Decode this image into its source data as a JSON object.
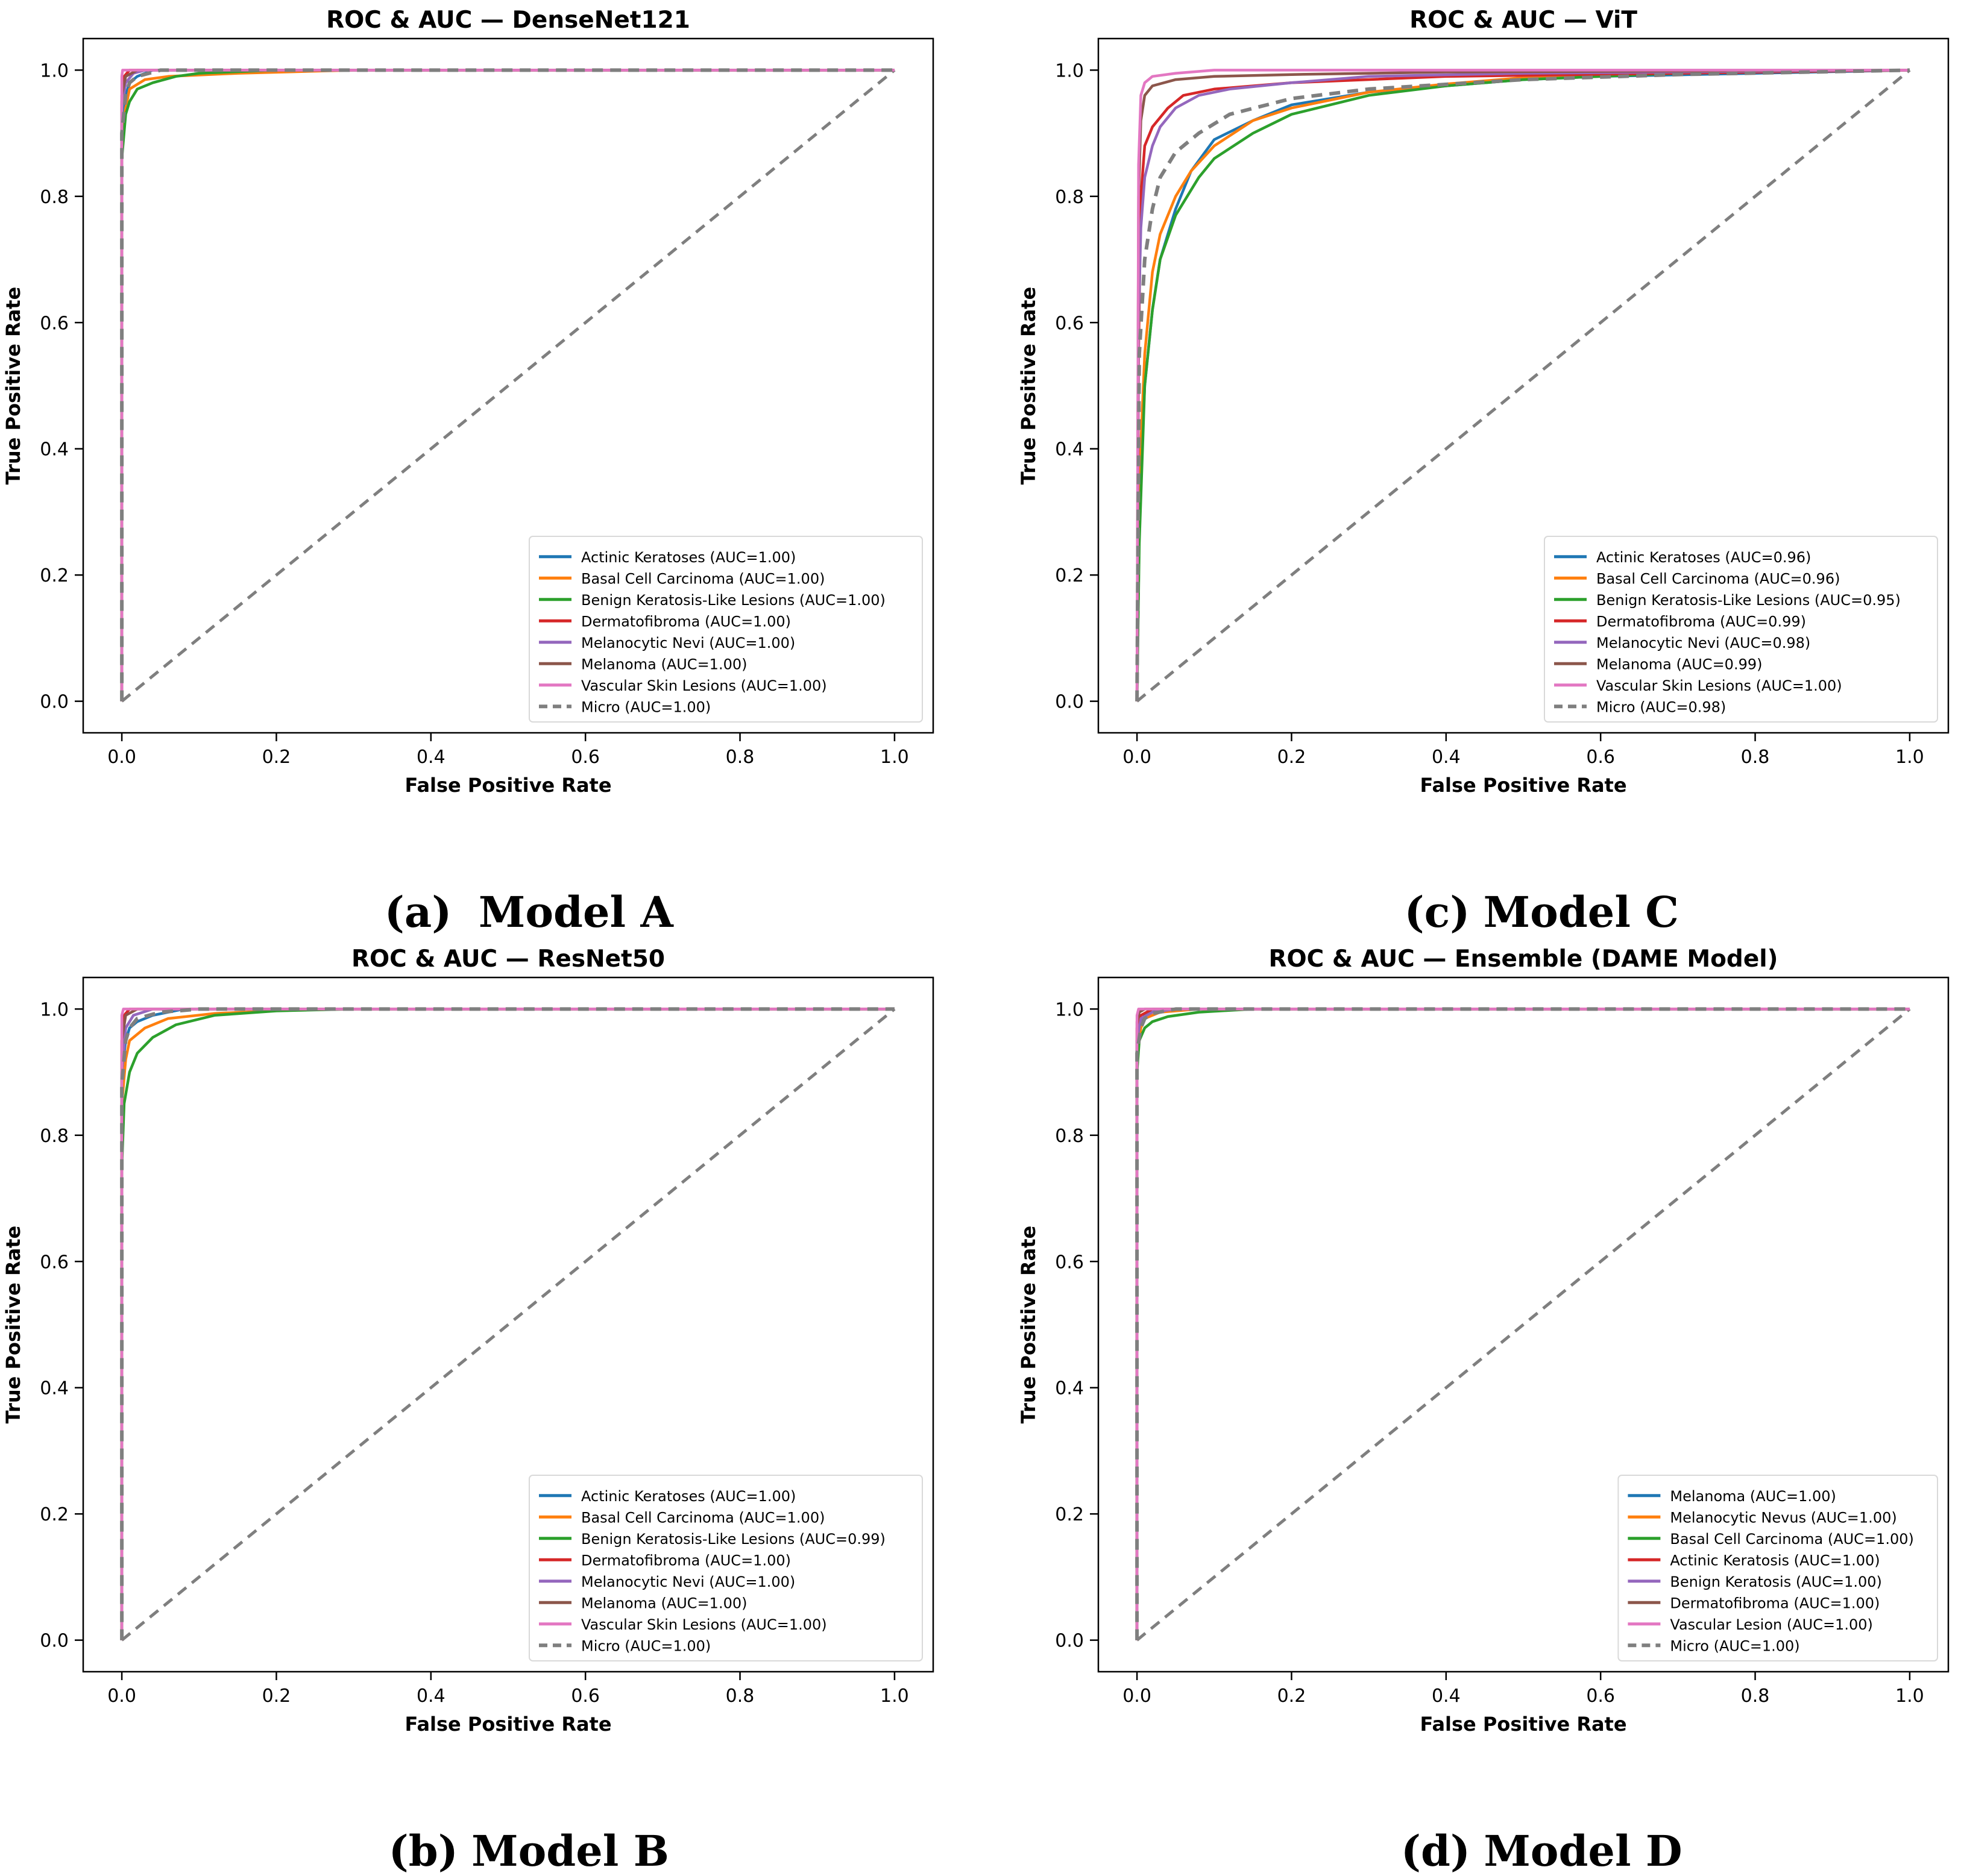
{
  "figure": {
    "colors": {
      "series": [
        "#1f77b4",
        "#ff7f0e",
        "#2ca02c",
        "#d62728",
        "#9467bd",
        "#8c564b",
        "#e377c2"
      ],
      "micro": "#7f7f7f",
      "diagonal": "#7f7f7f",
      "axes": "#000000"
    }
  },
  "captions": [
    {
      "label": "(a)",
      "name": "Model A"
    },
    {
      "label": "(b)",
      "name": "Model B"
    },
    {
      "label": "(c)",
      "name": "Model C"
    },
    {
      "label": "(d)",
      "name": "Model D"
    }
  ],
  "chart_data": [
    {
      "type": "line",
      "title": "ROC & AUC — DenseNet121",
      "xlabel": "False Positive Rate",
      "ylabel": "True Positive Rate",
      "xlim": [
        -0.05,
        1.05
      ],
      "ylim": [
        -0.05,
        1.05
      ],
      "xticks": [
        0.0,
        0.2,
        0.4,
        0.6,
        0.8,
        1.0
      ],
      "yticks": [
        0.0,
        0.2,
        0.4,
        0.6,
        0.8,
        1.0
      ],
      "tick_labels": [
        "0.0",
        "0.2",
        "0.4",
        "0.6",
        "0.8",
        "1.0"
      ],
      "legend_position": "lower-right",
      "series": [
        {
          "name": "Actinic Keratoses (AUC=1.00)",
          "x": [
            0,
            0,
            0.005,
            0.01,
            0.02,
            0.04,
            1
          ],
          "y": [
            0,
            0.9,
            0.96,
            0.98,
            0.99,
            1.0,
            1.0
          ]
        },
        {
          "name": "Basal Cell Carcinoma (AUC=1.00)",
          "x": [
            0,
            0,
            0.005,
            0.01,
            0.03,
            0.06,
            0.15,
            0.3,
            1
          ],
          "y": [
            0,
            0.88,
            0.94,
            0.97,
            0.985,
            0.99,
            0.995,
            1.0,
            1.0
          ]
        },
        {
          "name": "Benign Keratosis-Like Lesions (AUC=1.00)",
          "x": [
            0,
            0,
            0.005,
            0.01,
            0.02,
            0.04,
            0.07,
            0.1,
            0.2,
            1
          ],
          "y": [
            0,
            0.86,
            0.93,
            0.95,
            0.97,
            0.98,
            0.99,
            0.995,
            1.0,
            1.0
          ]
        },
        {
          "name": "Dermatofibroma (AUC=1.00)",
          "x": [
            0,
            0,
            0.003,
            0.01,
            1
          ],
          "y": [
            0,
            0.95,
            0.99,
            1.0,
            1.0
          ]
        },
        {
          "name": "Melanocytic Nevi (AUC=1.00)",
          "x": [
            0,
            0,
            0.005,
            0.015,
            0.03,
            1
          ],
          "y": [
            0,
            0.94,
            0.98,
            0.995,
            1.0,
            1.0
          ]
        },
        {
          "name": "Melanoma (AUC=1.00)",
          "x": [
            0,
            0,
            0.005,
            0.02,
            1
          ],
          "y": [
            0,
            0.96,
            0.99,
            1.0,
            1.0
          ]
        },
        {
          "name": "Vascular Skin Lesions (AUC=1.00)",
          "x": [
            0,
            0,
            0.001,
            1
          ],
          "y": [
            0,
            0.99,
            1.0,
            1.0
          ]
        },
        {
          "name": "Micro (AUC=1.00)",
          "dashed": true,
          "x": [
            0,
            0,
            0.005,
            0.01,
            0.02,
            0.05,
            1
          ],
          "y": [
            0,
            0.9,
            0.96,
            0.98,
            0.99,
            1.0,
            1.0
          ]
        }
      ]
    },
    {
      "type": "line",
      "title": "ROC & AUC — ResNet50",
      "xlabel": "False Positive Rate",
      "ylabel": "True Positive Rate",
      "xlim": [
        -0.05,
        1.05
      ],
      "ylim": [
        -0.05,
        1.05
      ],
      "xticks": [
        0.0,
        0.2,
        0.4,
        0.6,
        0.8,
        1.0
      ],
      "yticks": [
        0.0,
        0.2,
        0.4,
        0.6,
        0.8,
        1.0
      ],
      "tick_labels": [
        "0.0",
        "0.2",
        "0.4",
        "0.6",
        "0.8",
        "1.0"
      ],
      "legend_position": "lower-right",
      "series": [
        {
          "name": "Actinic Keratoses (AUC=1.00)",
          "x": [
            0,
            0,
            0.005,
            0.01,
            0.02,
            0.04,
            0.08,
            1
          ],
          "y": [
            0,
            0.9,
            0.95,
            0.97,
            0.98,
            0.99,
            1.0,
            1.0
          ]
        },
        {
          "name": "Basal Cell Carcinoma (AUC=1.00)",
          "x": [
            0,
            0,
            0.005,
            0.01,
            0.03,
            0.06,
            0.12,
            0.25,
            1
          ],
          "y": [
            0,
            0.85,
            0.92,
            0.95,
            0.97,
            0.985,
            0.993,
            1.0,
            1.0
          ]
        },
        {
          "name": "Benign Keratosis-Like Lesions (AUC=0.99)",
          "x": [
            0,
            0,
            0.003,
            0.01,
            0.02,
            0.04,
            0.07,
            0.12,
            0.2,
            0.3,
            1
          ],
          "y": [
            0,
            0.75,
            0.85,
            0.9,
            0.93,
            0.955,
            0.975,
            0.99,
            0.997,
            1.0,
            1.0
          ]
        },
        {
          "name": "Dermatofibroma (AUC=1.00)",
          "x": [
            0,
            0,
            0.003,
            0.01,
            1
          ],
          "y": [
            0,
            0.95,
            0.99,
            1.0,
            1.0
          ]
        },
        {
          "name": "Melanocytic Nevi (AUC=1.00)",
          "x": [
            0,
            0,
            0.005,
            0.015,
            0.04,
            1
          ],
          "y": [
            0,
            0.9,
            0.97,
            0.99,
            1.0,
            1.0
          ]
        },
        {
          "name": "Melanoma (AUC=1.00)",
          "x": [
            0,
            0,
            0.005,
            0.02,
            1
          ],
          "y": [
            0,
            0.95,
            0.99,
            1.0,
            1.0
          ]
        },
        {
          "name": "Vascular Skin Lesions (AUC=1.00)",
          "x": [
            0,
            0,
            0.002,
            1
          ],
          "y": [
            0,
            0.99,
            1.0,
            1.0
          ]
        },
        {
          "name": "Micro (AUC=1.00)",
          "dashed": true,
          "x": [
            0,
            0,
            0.005,
            0.01,
            0.02,
            0.05,
            0.1,
            1
          ],
          "y": [
            0,
            0.88,
            0.95,
            0.97,
            0.985,
            0.995,
            1.0,
            1.0
          ]
        }
      ]
    },
    {
      "type": "line",
      "title": "ROC & AUC — ViT",
      "xlabel": "False Positive Rate",
      "ylabel": "True Positive Rate",
      "xlim": [
        -0.05,
        1.05
      ],
      "ylim": [
        -0.05,
        1.05
      ],
      "xticks": [
        0.0,
        0.2,
        0.4,
        0.6,
        0.8,
        1.0
      ],
      "yticks": [
        0.0,
        0.2,
        0.4,
        0.6,
        0.8,
        1.0
      ],
      "tick_labels": [
        "0.0",
        "0.2",
        "0.4",
        "0.6",
        "0.8",
        "1.0"
      ],
      "legend_position": "lower-right",
      "series": [
        {
          "name": "Actinic Keratoses (AUC=0.96)",
          "x": [
            0,
            0.003,
            0.01,
            0.02,
            0.03,
            0.05,
            0.07,
            0.1,
            0.15,
            0.2,
            0.3,
            0.4,
            0.5,
            0.6,
            0.8,
            1
          ],
          "y": [
            0,
            0.3,
            0.5,
            0.62,
            0.7,
            0.78,
            0.84,
            0.89,
            0.92,
            0.945,
            0.965,
            0.975,
            0.985,
            0.99,
            0.995,
            1.0
          ]
        },
        {
          "name": "Basal Cell Carcinoma (AUC=0.96)",
          "x": [
            0,
            0.003,
            0.01,
            0.02,
            0.03,
            0.05,
            0.07,
            0.1,
            0.15,
            0.2,
            0.3,
            0.4,
            0.5,
            0.6,
            0.8,
            1
          ],
          "y": [
            0,
            0.35,
            0.55,
            0.68,
            0.74,
            0.8,
            0.84,
            0.88,
            0.92,
            0.94,
            0.965,
            0.978,
            0.988,
            0.993,
            0.997,
            1.0
          ]
        },
        {
          "name": "Benign Keratosis-Like Lesions (AUC=0.95)",
          "x": [
            0,
            0.003,
            0.01,
            0.02,
            0.03,
            0.05,
            0.08,
            0.1,
            0.15,
            0.2,
            0.3,
            0.4,
            0.5,
            0.6,
            0.7,
            1
          ],
          "y": [
            0,
            0.25,
            0.5,
            0.62,
            0.7,
            0.77,
            0.83,
            0.86,
            0.9,
            0.93,
            0.96,
            0.975,
            0.985,
            0.99,
            0.995,
            1.0
          ]
        },
        {
          "name": "Dermatofibroma (AUC=0.99)",
          "x": [
            0,
            0.002,
            0.005,
            0.01,
            0.02,
            0.04,
            0.06,
            0.1,
            0.2,
            0.4,
            1
          ],
          "y": [
            0,
            0.55,
            0.8,
            0.88,
            0.91,
            0.94,
            0.96,
            0.97,
            0.98,
            0.99,
            1.0
          ]
        },
        {
          "name": "Melanocytic Nevi (AUC=0.98)",
          "x": [
            0,
            0.002,
            0.005,
            0.01,
            0.02,
            0.03,
            0.05,
            0.08,
            0.12,
            0.2,
            0.3,
            0.5,
            1
          ],
          "y": [
            0,
            0.6,
            0.75,
            0.83,
            0.88,
            0.91,
            0.94,
            0.96,
            0.97,
            0.98,
            0.99,
            0.995,
            1.0
          ]
        },
        {
          "name": "Melanoma (AUC=0.99)",
          "x": [
            0,
            0.002,
            0.005,
            0.01,
            0.02,
            0.05,
            0.1,
            0.2,
            0.4,
            1
          ],
          "y": [
            0,
            0.8,
            0.92,
            0.96,
            0.975,
            0.985,
            0.99,
            0.993,
            0.997,
            1.0
          ]
        },
        {
          "name": "Vascular Skin Lesions (AUC=1.00)",
          "x": [
            0,
            0.002,
            0.005,
            0.01,
            0.02,
            0.05,
            0.1,
            1
          ],
          "y": [
            0,
            0.85,
            0.96,
            0.98,
            0.99,
            0.995,
            1.0,
            1.0
          ]
        },
        {
          "name": "Micro (AUC=0.98)",
          "dashed": true,
          "x": [
            0,
            0.003,
            0.01,
            0.02,
            0.03,
            0.05,
            0.08,
            0.12,
            0.2,
            0.3,
            0.5,
            0.7,
            1
          ],
          "y": [
            0,
            0.55,
            0.7,
            0.78,
            0.83,
            0.87,
            0.9,
            0.93,
            0.955,
            0.97,
            0.985,
            0.993,
            1.0
          ]
        }
      ]
    },
    {
      "type": "line",
      "title": "ROC & AUC — Ensemble (DAME Model)",
      "xlabel": "False Positive Rate",
      "ylabel": "True Positive Rate",
      "xlim": [
        -0.05,
        1.05
      ],
      "ylim": [
        -0.05,
        1.05
      ],
      "xticks": [
        0.0,
        0.2,
        0.4,
        0.6,
        0.8,
        1.0
      ],
      "yticks": [
        0.0,
        0.2,
        0.4,
        0.6,
        0.8,
        1.0
      ],
      "tick_labels": [
        "0.0",
        "0.2",
        "0.4",
        "0.6",
        "0.8",
        "1.0"
      ],
      "legend_position": "lower-right",
      "series": [
        {
          "name": "Melanoma (AUC=1.00)",
          "x": [
            0,
            0,
            0.005,
            0.01,
            0.03,
            1
          ],
          "y": [
            0,
            0.95,
            0.98,
            0.99,
            1.0,
            1.0
          ]
        },
        {
          "name": "Melanocytic Nevus (AUC=1.00)",
          "x": [
            0,
            0,
            0.005,
            0.01,
            0.03,
            0.08,
            1
          ],
          "y": [
            0,
            0.92,
            0.97,
            0.985,
            0.995,
            1.0,
            1.0
          ]
        },
        {
          "name": "Basal Cell Carcinoma (AUC=1.00)",
          "x": [
            0,
            0,
            0.003,
            0.01,
            0.02,
            0.04,
            0.08,
            0.15,
            1
          ],
          "y": [
            0,
            0.9,
            0.95,
            0.97,
            0.98,
            0.988,
            0.995,
            1.0,
            1.0
          ]
        },
        {
          "name": "Actinic Keratosis (AUC=1.00)",
          "x": [
            0,
            0,
            0.005,
            0.02,
            1
          ],
          "y": [
            0,
            0.97,
            0.99,
            1.0,
            1.0
          ]
        },
        {
          "name": "Benign Keratosis (AUC=1.00)",
          "x": [
            0,
            0,
            0.005,
            0.02,
            0.05,
            1
          ],
          "y": [
            0,
            0.95,
            0.985,
            0.995,
            1.0,
            1.0
          ]
        },
        {
          "name": "Dermatofibroma (AUC=1.00)",
          "x": [
            0,
            0,
            0.003,
            0.01,
            1
          ],
          "y": [
            0,
            0.98,
            0.995,
            1.0,
            1.0
          ]
        },
        {
          "name": "Vascular Lesion (AUC=1.00)",
          "x": [
            0,
            0,
            0.002,
            1
          ],
          "y": [
            0,
            0.99,
            1.0,
            1.0
          ]
        },
        {
          "name": "Micro (AUC=1.00)",
          "dashed": true,
          "x": [
            0,
            0,
            0.005,
            0.01,
            0.02,
            0.05,
            1
          ],
          "y": [
            0,
            0.93,
            0.97,
            0.985,
            0.993,
            1.0,
            1.0
          ]
        }
      ]
    }
  ]
}
